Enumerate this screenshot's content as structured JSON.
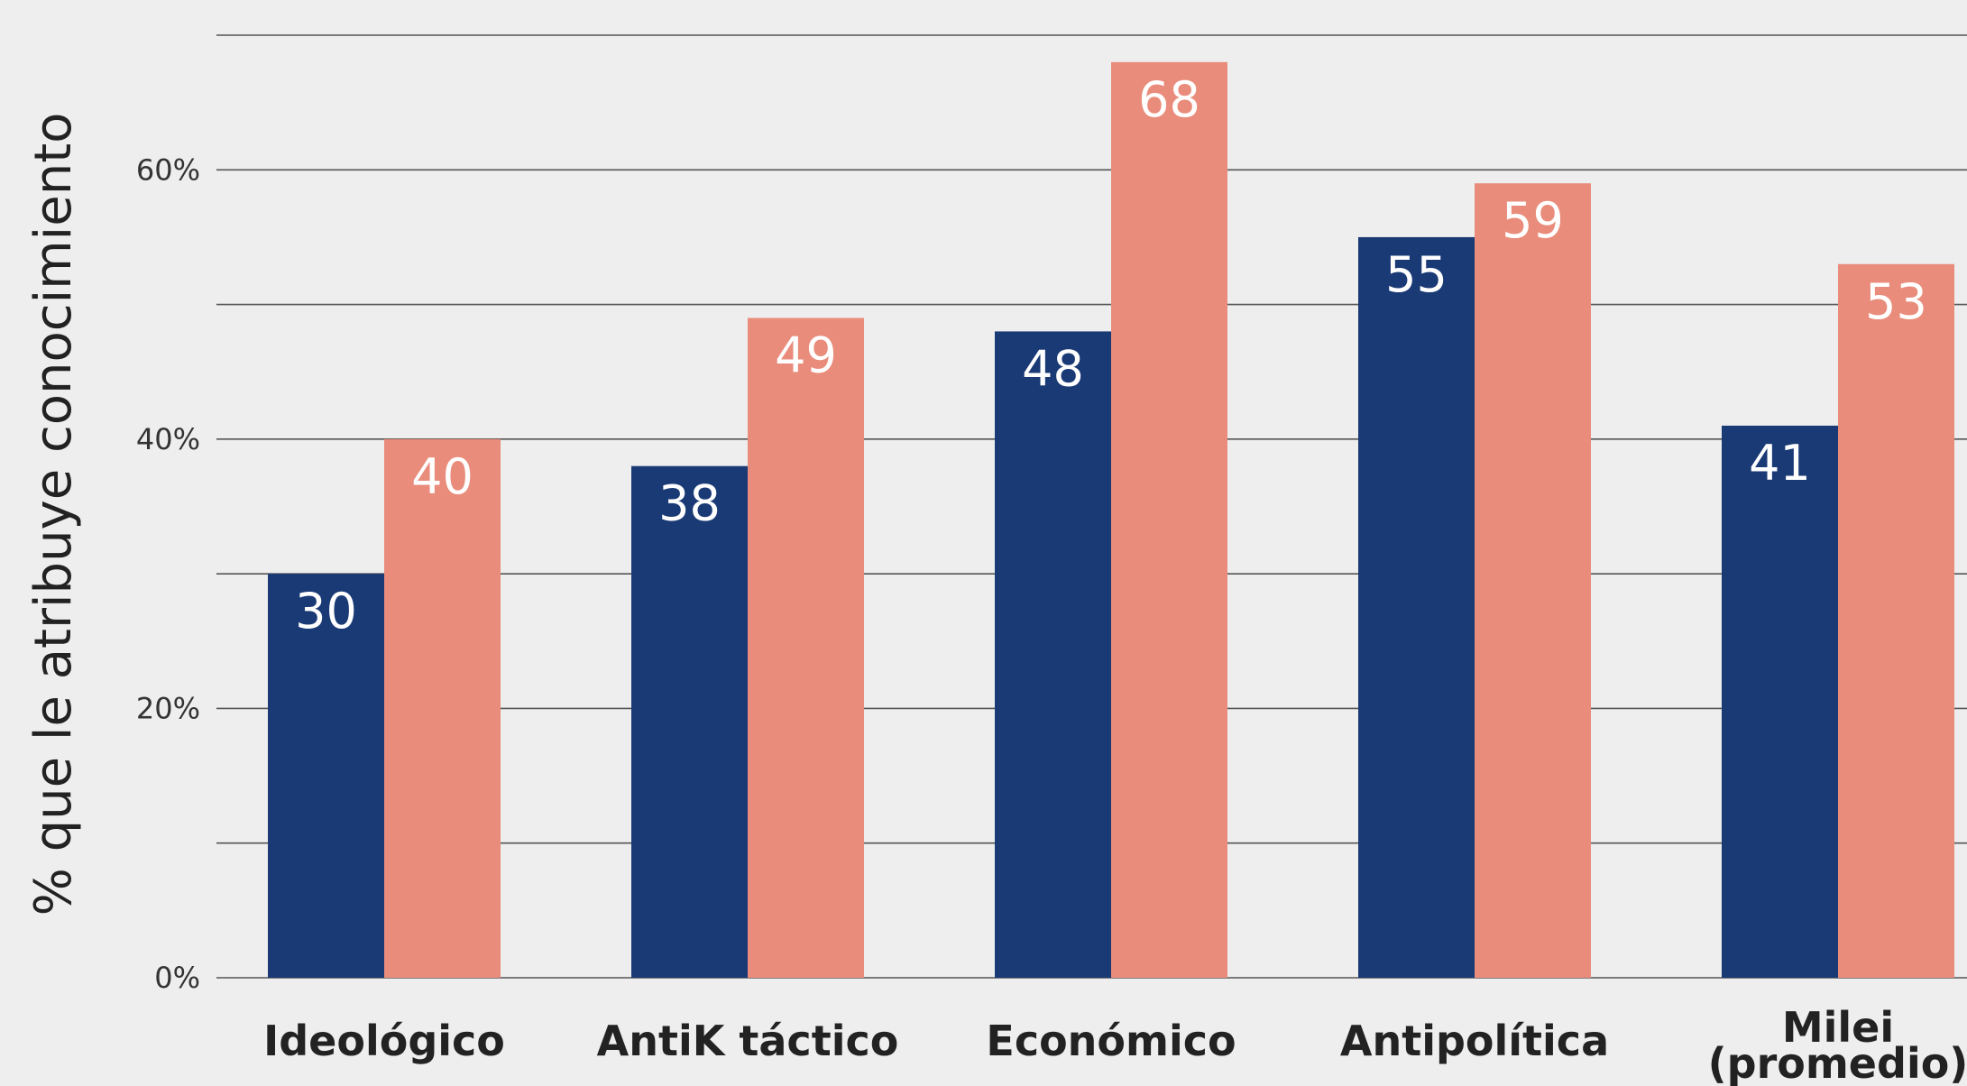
{
  "chart_data": {
    "type": "bar",
    "title": "",
    "xlabel": "",
    "ylabel": "% que le atribuye conocimiento",
    "ylim": [
      0,
      70
    ],
    "yticks": [
      0,
      20,
      40,
      60
    ],
    "ytick_labels": [
      "0%",
      "20%",
      "40%",
      "60%"
    ],
    "grid_values": [
      0,
      10,
      20,
      30,
      40,
      50,
      60,
      70
    ],
    "grid": true,
    "legend": "none",
    "categories": [
      {
        "lines": [
          "Ideológico"
        ]
      },
      {
        "lines": [
          "AntiK táctico"
        ]
      },
      {
        "lines": [
          "Económico"
        ]
      },
      {
        "lines": [
          "Antipolítica"
        ]
      },
      {
        "lines": [
          "Milei",
          "(promedio)"
        ]
      }
    ],
    "series": [
      {
        "color": "#1a3a75",
        "values": [
          30,
          38,
          48,
          55,
          41
        ],
        "labels": [
          "30",
          "38",
          "48",
          "55",
          "41"
        ]
      },
      {
        "color": "#e98c7b",
        "values": [
          40,
          49,
          68,
          59,
          53
        ],
        "labels": [
          "40",
          "49",
          "68",
          "59",
          "53"
        ]
      }
    ]
  }
}
